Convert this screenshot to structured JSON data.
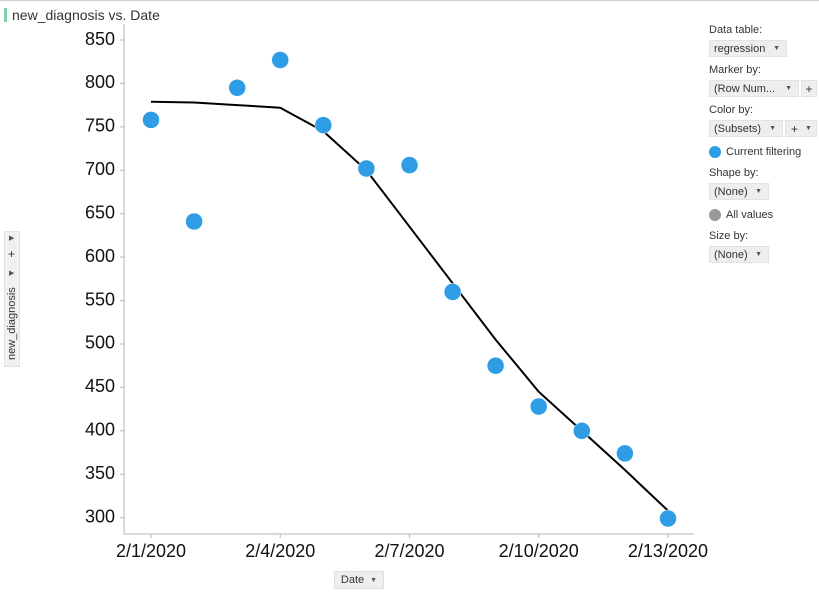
{
  "title": "new_diagnosis vs. Date",
  "colors": {
    "marker": "#2e9de6",
    "line": "#000000",
    "title_accent": "#7fd1a8",
    "all_values": "#999999"
  },
  "y_axis_control": {
    "label": "new_diagnosis",
    "plus": "+"
  },
  "x_axis_control": {
    "label": "Date"
  },
  "panel": {
    "data_table_label": "Data table:",
    "data_table_value": "regression",
    "marker_by_label": "Marker by:",
    "marker_by_value": "(Row Num...",
    "color_by_label": "Color by:",
    "color_by_value": "(Subsets)",
    "current_filtering": "Current filtering",
    "shape_by_label": "Shape by:",
    "shape_by_value": "(None)",
    "all_values": "All values",
    "size_by_label": "Size by:",
    "size_by_value": "(None)",
    "plus": "+"
  },
  "chart_data": {
    "type": "scatter",
    "xlabel": "Date",
    "ylabel": "new_diagnosis",
    "ylim": [
      275,
      860
    ],
    "xlim": [
      "2020-01-31",
      "2020-02-13"
    ],
    "y_ticks": [
      850,
      800,
      750,
      700,
      650,
      600,
      550,
      500,
      450,
      400,
      350,
      300
    ],
    "x_ticks": [
      "2/1/2020",
      "2/4/2020",
      "2/7/2020",
      "2/10/2020",
      "2/13/2020"
    ],
    "legend": [
      "Current filtering",
      "All values"
    ],
    "grid": false,
    "series": [
      {
        "kind": "scatter",
        "x": [
          "2020-02-01",
          "2020-02-02",
          "2020-02-03",
          "2020-02-04",
          "2020-02-05",
          "2020-02-06",
          "2020-02-07",
          "2020-02-08",
          "2020-02-09",
          "2020-02-10",
          "2020-02-11",
          "2020-02-12",
          "2020-02-13"
        ],
        "y": [
          758,
          641,
          795,
          827,
          752,
          702,
          706,
          560,
          475,
          428,
          400,
          374,
          299
        ]
      },
      {
        "kind": "line",
        "x": [
          "2020-02-01",
          "2020-02-02",
          "2020-02-03",
          "2020-02-04",
          "2020-02-05",
          "2020-02-06",
          "2020-02-07",
          "2020-02-08",
          "2020-02-09",
          "2020-02-10",
          "2020-02-11",
          "2020-02-12",
          "2020-02-13"
        ],
        "y": [
          779,
          778,
          775,
          772,
          745,
          700,
          635,
          570,
          505,
          445,
          400,
          355,
          308
        ]
      }
    ]
  }
}
